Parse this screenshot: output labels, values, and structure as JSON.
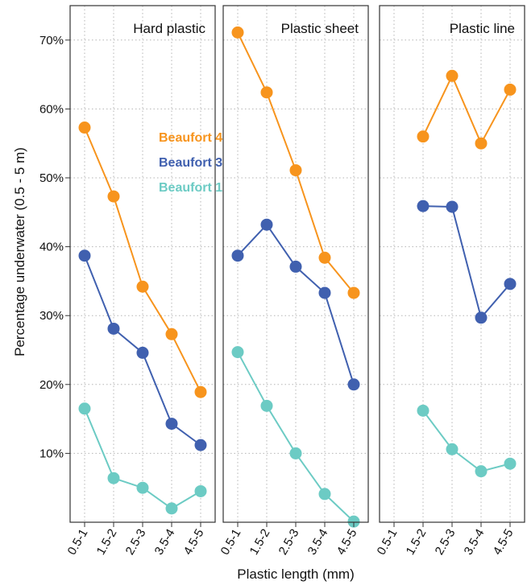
{
  "chart_data": {
    "type": "line",
    "xlabel": "Plastic length (mm)",
    "ylabel": "Percentage underwater (0.5 - 5 m)",
    "categories": [
      "0.5-1",
      "1.5-2",
      "2.5-3",
      "3.5-4",
      "4.5-5"
    ],
    "ylim": [
      0,
      75
    ],
    "yticks": [
      10,
      20,
      30,
      40,
      50,
      60,
      70
    ],
    "ytick_labels": [
      "10%",
      "20%",
      "30%",
      "40%",
      "50%",
      "60%",
      "70%"
    ],
    "grid": true,
    "legend": {
      "placement": "inside first panel, upper middle",
      "entries": [
        {
          "label": "Beaufort 4",
          "color": "#F7941D"
        },
        {
          "label": "Beaufort 3",
          "color": "#4060AF"
        },
        {
          "label": "Beaufort 1",
          "color": "#6CCBC4"
        }
      ]
    },
    "panels": [
      {
        "title": "Hard plastic",
        "series": [
          {
            "name": "Beaufort 4",
            "color": "#F7941D",
            "values": [
              57.3,
              47.3,
              34.2,
              27.3,
              18.9
            ]
          },
          {
            "name": "Beaufort 3",
            "color": "#4060AF",
            "values": [
              38.7,
              28.1,
              24.6,
              14.3,
              11.2
            ]
          },
          {
            "name": "Beaufort 1",
            "color": "#6CCBC4",
            "values": [
              16.5,
              6.4,
              5.0,
              2.0,
              4.5
            ]
          }
        ]
      },
      {
        "title": "Plastic sheet",
        "series": [
          {
            "name": "Beaufort 4",
            "color": "#F7941D",
            "values": [
              71.1,
              62.4,
              51.1,
              38.4,
              33.3
            ]
          },
          {
            "name": "Beaufort 3",
            "color": "#4060AF",
            "values": [
              38.7,
              43.2,
              37.1,
              33.3,
              20.0
            ]
          },
          {
            "name": "Beaufort 1",
            "color": "#6CCBC4",
            "values": [
              24.7,
              16.9,
              10.0,
              4.1,
              0.1
            ]
          }
        ]
      },
      {
        "title": "Plastic line",
        "series": [
          {
            "name": "Beaufort 4",
            "color": "#F7941D",
            "values": [
              null,
              56.0,
              64.8,
              55.0,
              62.8
            ]
          },
          {
            "name": "Beaufort 3",
            "color": "#4060AF",
            "values": [
              null,
              45.9,
              45.8,
              29.7,
              34.6
            ]
          },
          {
            "name": "Beaufort 1",
            "color": "#6CCBC4",
            "values": [
              null,
              16.2,
              10.6,
              7.4,
              8.5
            ]
          }
        ]
      }
    ]
  }
}
